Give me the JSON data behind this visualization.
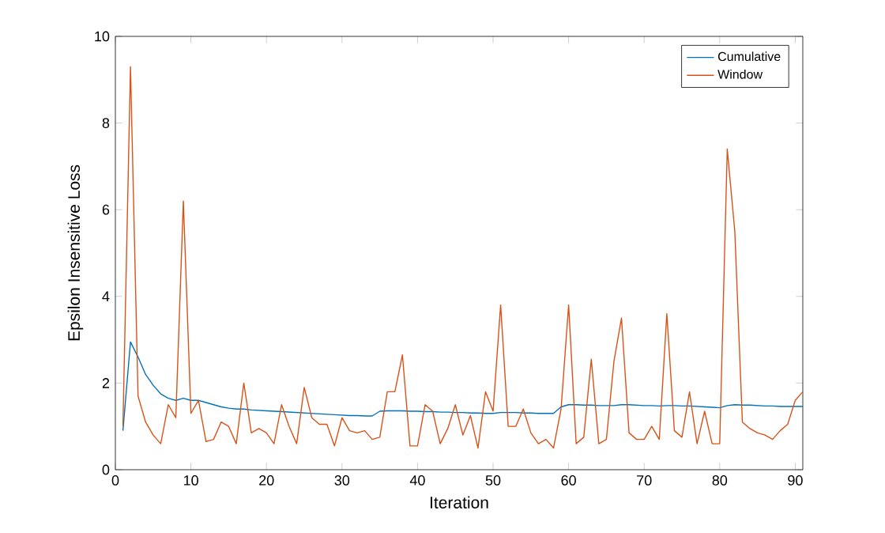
{
  "chart_data": {
    "type": "line",
    "xlabel": "Iteration",
    "ylabel": "Epsilon Insensitive Loss",
    "x": [
      1,
      2,
      3,
      4,
      5,
      6,
      7,
      8,
      9,
      10,
      11,
      12,
      13,
      14,
      15,
      16,
      17,
      18,
      19,
      20,
      21,
      22,
      23,
      24,
      25,
      26,
      27,
      28,
      29,
      30,
      31,
      32,
      33,
      34,
      35,
      36,
      37,
      38,
      39,
      40,
      41,
      42,
      43,
      44,
      45,
      46,
      47,
      48,
      49,
      50,
      51,
      52,
      53,
      54,
      55,
      56,
      57,
      58,
      59,
      60,
      61,
      62,
      63,
      64,
      65,
      66,
      67,
      68,
      69,
      70,
      71,
      72,
      73,
      74,
      75,
      76,
      77,
      78,
      79,
      80,
      81,
      82,
      83,
      84,
      85,
      86,
      87,
      88,
      89,
      90,
      91
    ],
    "series": [
      {
        "name": "Cumulative",
        "color": "#0072bd",
        "values": [
          0.9,
          2.95,
          2.6,
          2.2,
          1.95,
          1.75,
          1.65,
          1.6,
          1.65,
          1.6,
          1.6,
          1.55,
          1.5,
          1.45,
          1.42,
          1.4,
          1.4,
          1.38,
          1.37,
          1.36,
          1.35,
          1.34,
          1.33,
          1.32,
          1.31,
          1.3,
          1.29,
          1.28,
          1.27,
          1.26,
          1.25,
          1.25,
          1.24,
          1.24,
          1.35,
          1.36,
          1.36,
          1.36,
          1.35,
          1.35,
          1.34,
          1.34,
          1.33,
          1.33,
          1.32,
          1.32,
          1.31,
          1.31,
          1.3,
          1.3,
          1.32,
          1.32,
          1.32,
          1.31,
          1.31,
          1.3,
          1.3,
          1.3,
          1.45,
          1.5,
          1.5,
          1.49,
          1.49,
          1.48,
          1.48,
          1.48,
          1.5,
          1.5,
          1.49,
          1.48,
          1.48,
          1.47,
          1.48,
          1.48,
          1.47,
          1.47,
          1.46,
          1.45,
          1.44,
          1.43,
          1.48,
          1.5,
          1.49,
          1.49,
          1.48,
          1.47,
          1.47,
          1.46,
          1.46,
          1.46,
          1.46
        ]
      },
      {
        "name": "Window",
        "color": "#d95319",
        "values": [
          1.0,
          9.3,
          1.7,
          1.1,
          0.8,
          0.6,
          1.5,
          1.2,
          6.2,
          1.3,
          1.6,
          0.65,
          0.7,
          1.1,
          1.0,
          0.6,
          2.0,
          0.85,
          0.95,
          0.85,
          0.6,
          1.5,
          1.0,
          0.6,
          1.9,
          1.2,
          1.05,
          1.05,
          0.55,
          1.2,
          0.9,
          0.85,
          0.9,
          0.7,
          0.75,
          1.8,
          1.8,
          2.65,
          0.55,
          0.55,
          1.5,
          1.35,
          0.6,
          0.95,
          1.5,
          0.8,
          1.25,
          0.5,
          1.8,
          1.35,
          3.8,
          1.0,
          1.0,
          1.4,
          0.85,
          0.6,
          0.7,
          0.5,
          1.4,
          3.8,
          0.6,
          0.75,
          2.55,
          0.6,
          0.7,
          2.5,
          3.5,
          0.85,
          0.7,
          0.7,
          1.0,
          0.7,
          3.6,
          0.9,
          0.75,
          1.8,
          0.6,
          1.35,
          0.6,
          0.6,
          7.4,
          5.5,
          1.1,
          0.95,
          0.85,
          0.8,
          0.7,
          0.9,
          1.05,
          1.6,
          1.8
        ]
      }
    ],
    "xlim": [
      0,
      91
    ],
    "ylim": [
      0,
      10
    ],
    "xticks": [
      0,
      10,
      20,
      30,
      40,
      50,
      60,
      70,
      80,
      90
    ],
    "yticks": [
      0,
      2,
      4,
      6,
      8,
      10
    ],
    "legend": "top right",
    "grid": false,
    "marker": "none",
    "line_style": "solid"
  }
}
